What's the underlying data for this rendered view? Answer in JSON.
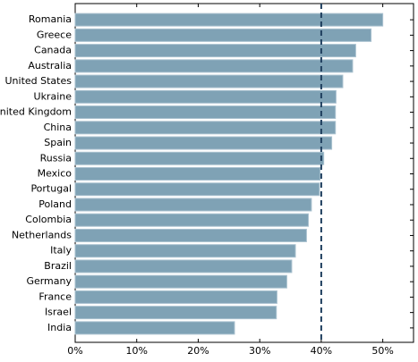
{
  "chart_data": {
    "type": "barh",
    "categories": [
      "Romania",
      "Greece",
      "Canada",
      "Australia",
      "United States",
      "Ukraine",
      "United Kingdom",
      "China",
      "Spain",
      "Russia",
      "Mexico",
      "Portugal",
      "Poland",
      "Colombia",
      "Netherlands",
      "Italy",
      "Brazil",
      "Germany",
      "France",
      "Israel",
      "India"
    ],
    "values": [
      50,
      48.1,
      45.6,
      45.1,
      43.5,
      42.4,
      42.3,
      42.3,
      41.7,
      40.4,
      39.8,
      39.7,
      38.4,
      37.9,
      37.6,
      35.8,
      35.2,
      34.4,
      32.8,
      32.7,
      25.9
    ],
    "color": "#7fa2b5",
    "xlim": [
      0,
      55
    ],
    "xticks": [
      {
        "value": 0,
        "label": "0%"
      },
      {
        "value": 10,
        "label": "10%"
      },
      {
        "value": 20,
        "label": "20%"
      },
      {
        "value": 30,
        "label": "30%"
      },
      {
        "value": 40,
        "label": "40%"
      },
      {
        "value": 50,
        "label": "50%"
      }
    ],
    "reference_line": 40
  }
}
